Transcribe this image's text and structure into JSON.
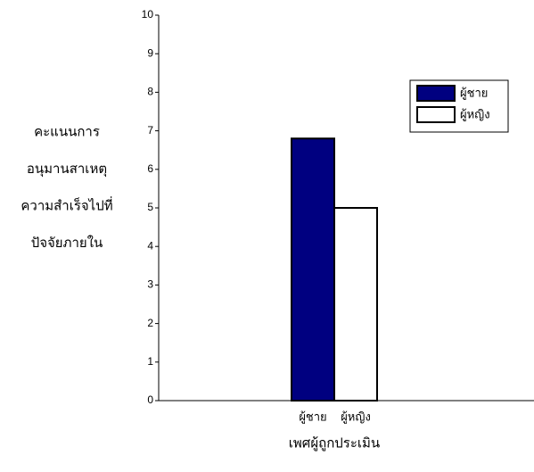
{
  "chart_data": {
    "type": "bar",
    "ylabel": [
      "คะแนนการ",
      "อนุมานสาเหตุ",
      "ความสำเร็จไปที่",
      "ปัจจัยภายใน"
    ],
    "xlabel": "เพศผู้ถูกประเมิน",
    "categories": [
      "ผู้ชาย",
      "ผู้หญิง"
    ],
    "values": [
      6.8,
      5
    ],
    "colors": [
      "#000080",
      "#ffffff"
    ],
    "edgecolor": "#000000",
    "ylim": [
      0,
      10
    ],
    "yticks": [
      0,
      1,
      2,
      3,
      4,
      5,
      6,
      7,
      8,
      9,
      10
    ],
    "grid": false,
    "legend": "upper right"
  }
}
